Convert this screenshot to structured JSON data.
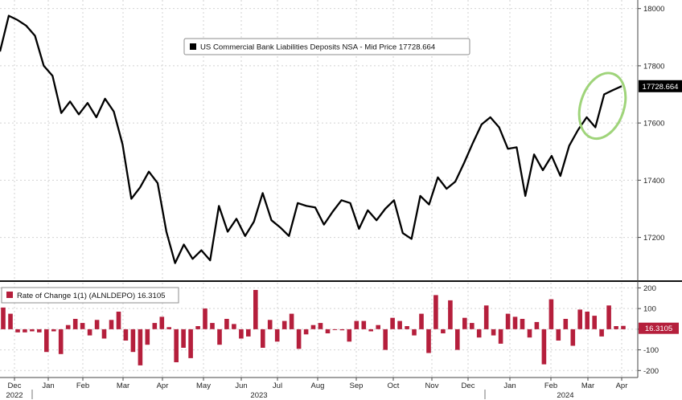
{
  "chart_data": [
    {
      "type": "line",
      "legend": {
        "label": "US Commercial Bank Liabilities Deposits NSA - Mid Price 17728.664",
        "placement": "top-center"
      },
      "last_value_label": "17728.664",
      "grid": true,
      "ylim": [
        17050,
        18030
      ],
      "y_ticks": [
        {
          "value": 18000,
          "label": "18000"
        },
        {
          "value": 17800,
          "label": "17800"
        },
        {
          "value": 17600,
          "label": "17600"
        },
        {
          "value": 17400,
          "label": "17400"
        },
        {
          "value": 17200,
          "label": "17200"
        }
      ],
      "series": [
        {
          "color": "#000000",
          "values": [
            17850,
            17975,
            17960,
            17940,
            17905,
            17800,
            17765,
            17635,
            17675,
            17630,
            17670,
            17620,
            17685,
            17640,
            17525,
            17335,
            17375,
            17430,
            17390,
            17220,
            17110,
            17175,
            17125,
            17155,
            17120,
            17310,
            17220,
            17265,
            17205,
            17255,
            17355,
            17260,
            17235,
            17205,
            17320,
            17310,
            17305,
            17245,
            17290,
            17330,
            17320,
            17230,
            17295,
            17260,
            17300,
            17330,
            17215,
            17195,
            17345,
            17315,
            17410,
            17370,
            17395,
            17460,
            17530,
            17595,
            17620,
            17585,
            17510,
            17515,
            17345,
            17490,
            17435,
            17485,
            17415,
            17520,
            17575,
            17620,
            17585,
            17700,
            17715,
            17728.664
          ]
        }
      ]
    },
    {
      "type": "bar",
      "legend": {
        "label": "Rate of Change 1(1) (ALNLDEPO) 16.3105",
        "placement": "top-left"
      },
      "last_value_label": "16.3105",
      "ylim": [
        -230,
        225
      ],
      "y_ticks": [
        {
          "value": 200,
          "label": "200"
        },
        {
          "value": 100,
          "label": "100"
        },
        {
          "value": 0,
          "label": "0"
        },
        {
          "value": -100,
          "label": "-100"
        },
        {
          "value": -200,
          "label": "-200"
        }
      ],
      "series": [
        {
          "color": "#b51f3c",
          "values": [
            105,
            75,
            -15,
            -15,
            -10,
            -15,
            -110,
            -10,
            -120,
            20,
            50,
            30,
            -30,
            45,
            -45,
            45,
            85,
            -55,
            -110,
            -175,
            -75,
            30,
            60,
            10,
            -160,
            -90,
            -140,
            15,
            100,
            30,
            -75,
            50,
            25,
            -45,
            -35,
            190,
            -90,
            45,
            -60,
            40,
            75,
            -95,
            -25,
            20,
            30,
            -20,
            -2,
            -5,
            -60,
            40,
            40,
            -10,
            20,
            -100,
            55,
            40,
            15,
            -30,
            75,
            -115,
            165,
            -20,
            140,
            -100,
            55,
            30,
            -40,
            115,
            -30,
            -70,
            75,
            60,
            50,
            -40,
            35,
            -170,
            145,
            -55,
            50,
            -80,
            95,
            85,
            65,
            -35,
            115,
            15,
            16.3105
          ]
        }
      ]
    }
  ],
  "x_axis": {
    "months": [
      "Dec",
      "Jan",
      "Feb",
      "Mar",
      "Apr",
      "May",
      "Jun",
      "Jul",
      "Aug",
      "Sep",
      "Oct",
      "Nov",
      "Dec",
      "Jan",
      "Feb",
      "Mar",
      "Apr"
    ],
    "years": [
      "2022",
      "2023",
      "2024"
    ]
  },
  "colors": {
    "line": "#000000",
    "bars": "#b51f3c",
    "grid": "#d2d2d2",
    "highlight_ellipse": "#9fd47a"
  }
}
